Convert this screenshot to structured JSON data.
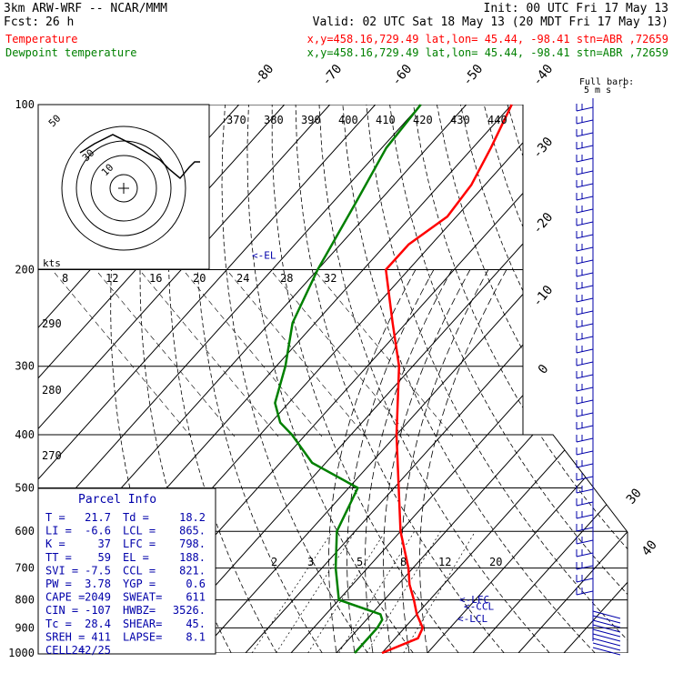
{
  "header": {
    "model": "3km ARW-WRF -- NCAR/MMM",
    "init": "Init: 00 UTC Fri 17 May 13",
    "fcst_label": "Fcst:",
    "fcst_value": "26 h",
    "valid": "Valid: 02 UTC Sat 18 May 13 (20 MDT Fri 17 May 13)",
    "lines": [
      {
        "label": "Temperature",
        "location": "x,y=458.16,729.49   lat,lon= 45.44, -98.41   stn=ABR ,72659",
        "color": "#ff0000"
      },
      {
        "label": "Dewpoint temperature",
        "location": "x,y=458.16,729.49   lat,lon= 45.44, -98.41   stn=ABR ,72659",
        "color": "#008000"
      }
    ]
  },
  "colors": {
    "temperature": "#ff0000",
    "dewpoint": "#008000",
    "parcel_panel": "#0000aa",
    "barbs": "#0000aa"
  },
  "chart_data": {
    "type": "line",
    "y_scale": "log-pressure",
    "pressure_levels": [
      100,
      200,
      300,
      400,
      500,
      600,
      700,
      800,
      900,
      1000
    ],
    "pressure_range": [
      1000,
      100
    ],
    "temperature_ticks": [
      -80,
      -70,
      -60,
      -50,
      -40,
      -30,
      -20,
      -10,
      0,
      30,
      40
    ],
    "theta_labels": [
      370,
      380,
      390,
      400,
      410,
      420,
      430,
      440
    ],
    "theta_side_labels": [
      290,
      280,
      270
    ],
    "mixing_ratio_labels": [
      "2",
      "3",
      "5",
      "8",
      "12",
      "20"
    ],
    "series": [
      {
        "name": "Temperature",
        "points": [
          [
            1000,
            20.0
          ],
          [
            940,
            25.0
          ],
          [
            900,
            24.0
          ],
          [
            850,
            20.0
          ],
          [
            800,
            16.5
          ],
          [
            750,
            12.5
          ],
          [
            700,
            9.0
          ],
          [
            600,
            0.0
          ],
          [
            500,
            -9.0
          ],
          [
            400,
            -20.0
          ],
          [
            300,
            -33.0
          ],
          [
            250,
            -43.0
          ],
          [
            200,
            -55.0
          ],
          [
            180,
            -55.0
          ],
          [
            160,
            -52.0
          ],
          [
            140,
            -53.0
          ],
          [
            120,
            -56.0
          ],
          [
            100,
            -60.0
          ]
        ]
      },
      {
        "name": "Dewpoint temperature",
        "points": [
          [
            1000,
            14.0
          ],
          [
            950,
            14.0
          ],
          [
            900,
            14.0
          ],
          [
            870,
            13.5
          ],
          [
            850,
            12.0
          ],
          [
            800,
            0.0
          ],
          [
            700,
            -7.0
          ],
          [
            600,
            -14.0
          ],
          [
            500,
            -18.0
          ],
          [
            450,
            -33.0
          ],
          [
            400,
            -43.0
          ],
          [
            380,
            -48.0
          ],
          [
            350,
            -53.0
          ],
          [
            300,
            -58.0
          ],
          [
            250,
            -65.0
          ],
          [
            200,
            -70.0
          ],
          [
            150,
            -75.0
          ],
          [
            120,
            -79.0
          ],
          [
            100,
            -80.0
          ]
        ]
      }
    ],
    "markers": [
      {
        "label": "<-LFC",
        "p": 798
      },
      {
        "label": "<-CCL",
        "p": 821
      },
      {
        "label": "<-LCL",
        "p": 865
      },
      {
        "label": "<-EL",
        "p": 188
      }
    ],
    "hodograph": {
      "kts_label": "kts",
      "ring_labels": [
        "10",
        "30",
        "50"
      ],
      "speed_ticks": [
        "8",
        "12",
        "16",
        "20",
        "24",
        "28",
        "32"
      ]
    },
    "barbs_title": "Full barb:",
    "barbs_unit": "5 m s",
    "barbs_unit_exp": "-1"
  },
  "parcel_info": {
    "title": "Parcel Info",
    "rows": [
      [
        "T  =",
        "21.7",
        "Td =",
        "18.2"
      ],
      [
        "LI =",
        "-6.6",
        "LCL =",
        "865."
      ],
      [
        "K  =",
        "37",
        "LFC =",
        "798."
      ],
      [
        "TT =",
        "59",
        "EL =",
        "188."
      ],
      [
        "SVI =",
        "-7.5",
        "CCL =",
        "821."
      ],
      [
        "PW =",
        "3.78",
        "YGP =",
        "0.6"
      ],
      [
        "CAPE =",
        "2049",
        "SWEAT=",
        "611"
      ],
      [
        "CIN =",
        "-107",
        "HWBZ=",
        "3526."
      ],
      [
        "Tc =",
        "28.4",
        "SHEAR=",
        "45."
      ],
      [
        "SREH =",
        "411",
        "LAPSE=",
        "8.1"
      ],
      [
        "CELL =",
        "242/25",
        "",
        ""
      ]
    ]
  }
}
